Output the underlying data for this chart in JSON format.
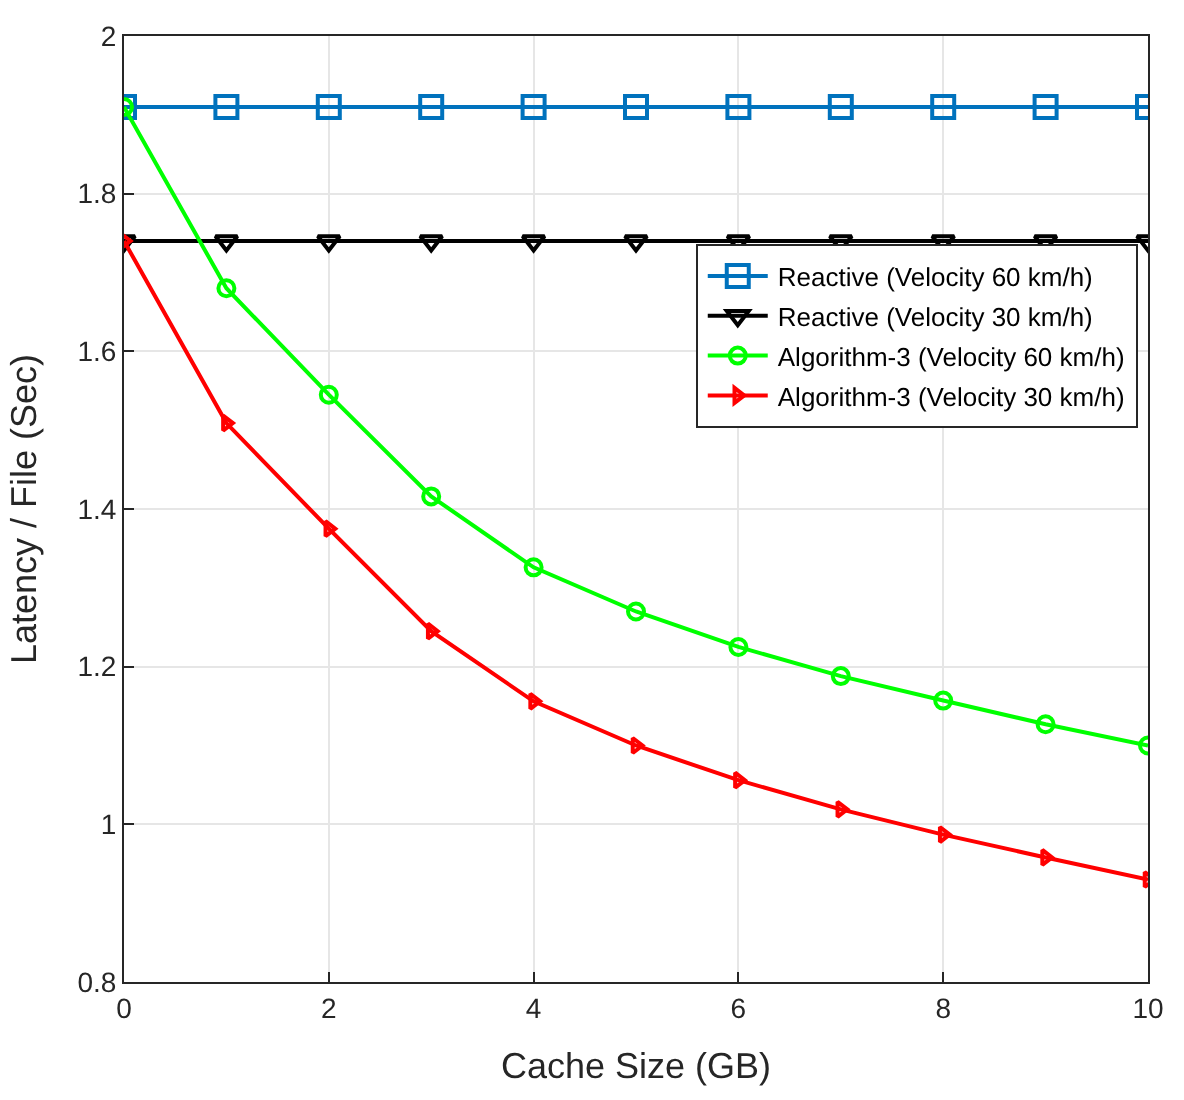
{
  "chart_data": {
    "type": "line",
    "xlabel": "Cache Size (GB)",
    "ylabel": "Latency / File (Sec)",
    "x": [
      0,
      1,
      2,
      3,
      4,
      5,
      6,
      7,
      8,
      9,
      10
    ],
    "series": [
      {
        "name": "Reactive (Velocity 60 km/h)",
        "color": "#0072bd",
        "marker": "square",
        "values": [
          1.91,
          1.91,
          1.91,
          1.91,
          1.91,
          1.91,
          1.91,
          1.91,
          1.91,
          1.91,
          1.91
        ]
      },
      {
        "name": "Reactive (Velocity 30 km/h)",
        "color": "#000000",
        "marker": "triangle-down",
        "values": [
          1.74,
          1.74,
          1.74,
          1.74,
          1.74,
          1.74,
          1.74,
          1.74,
          1.74,
          1.74,
          1.74
        ]
      },
      {
        "name": "Algorithm-3 (Velocity 60 km/h)",
        "color": "#00ff00",
        "marker": "circle",
        "values": [
          1.91,
          1.68,
          1.545,
          1.416,
          1.326,
          1.27,
          1.225,
          1.188,
          1.157,
          1.127,
          1.1
        ]
      },
      {
        "name": "Algorithm-3 (Velocity 30 km/h)",
        "color": "#ff0000",
        "marker": "triangle-right",
        "values": [
          1.74,
          1.509,
          1.375,
          1.245,
          1.156,
          1.1,
          1.056,
          1.019,
          0.987,
          0.958,
          0.93
        ]
      }
    ],
    "xlim": [
      0,
      10
    ],
    "xticks": [
      0,
      2,
      4,
      6,
      8,
      10
    ],
    "ylim": [
      0.8,
      2
    ],
    "yticks": [
      0.8,
      1,
      1.2,
      1.4,
      1.6,
      1.8,
      2
    ],
    "grid": true,
    "legend": "top right",
    "line_style": "solid"
  }
}
